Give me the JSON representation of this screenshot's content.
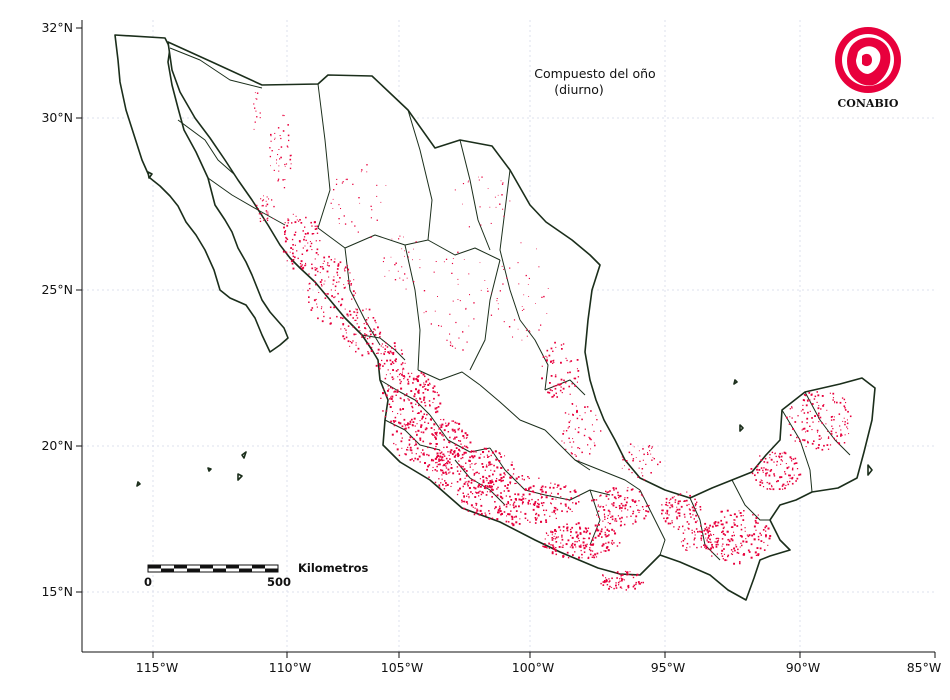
{
  "title": {
    "line1": "Compuesto del oño",
    "line2": "(diurno)"
  },
  "axes": {
    "x_ticks": [
      "115°W",
      "110°W",
      "105°W",
      "100°W",
      "95°W",
      "90°W",
      "85°W"
    ],
    "y_ticks": [
      "32°N",
      "30°N",
      "25°N",
      "20°N",
      "15°N"
    ],
    "x_range": [
      -118,
      -85
    ],
    "y_range": [
      13,
      32
    ],
    "grid": true
  },
  "scale_bar": {
    "label": "Kilometros",
    "start": "0",
    "end": "500"
  },
  "logo": {
    "text": "CONABIO",
    "icon": "conabio-logo-icon"
  },
  "colors": {
    "hotspot": "#e8003c",
    "border": "#1b2e1b",
    "grid": "#dde0ee"
  }
}
